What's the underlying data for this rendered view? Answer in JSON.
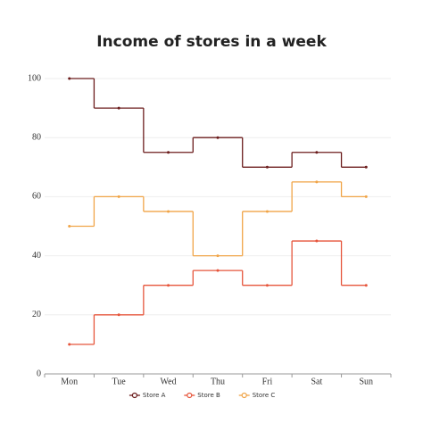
{
  "chart_data": {
    "type": "step",
    "title": "Income of stores in a week",
    "categories": [
      "Mon",
      "Tue",
      "Wed",
      "Thu",
      "Fri",
      "Sat",
      "Sun"
    ],
    "series": [
      {
        "name": "Store A",
        "color": "#6b1c1c",
        "values": [
          100,
          90,
          75,
          80,
          70,
          75,
          70
        ]
      },
      {
        "name": "Store B",
        "color": "#e6553b",
        "values": [
          10,
          20,
          30,
          35,
          30,
          45,
          30
        ]
      },
      {
        "name": "Store C",
        "color": "#f0a447",
        "values": [
          50,
          60,
          55,
          40,
          55,
          65,
          60
        ]
      }
    ],
    "ylim": [
      0,
      100
    ],
    "yticks": [
      0,
      20,
      40,
      60,
      80,
      100
    ],
    "grid": true,
    "legend": "bottom"
  }
}
